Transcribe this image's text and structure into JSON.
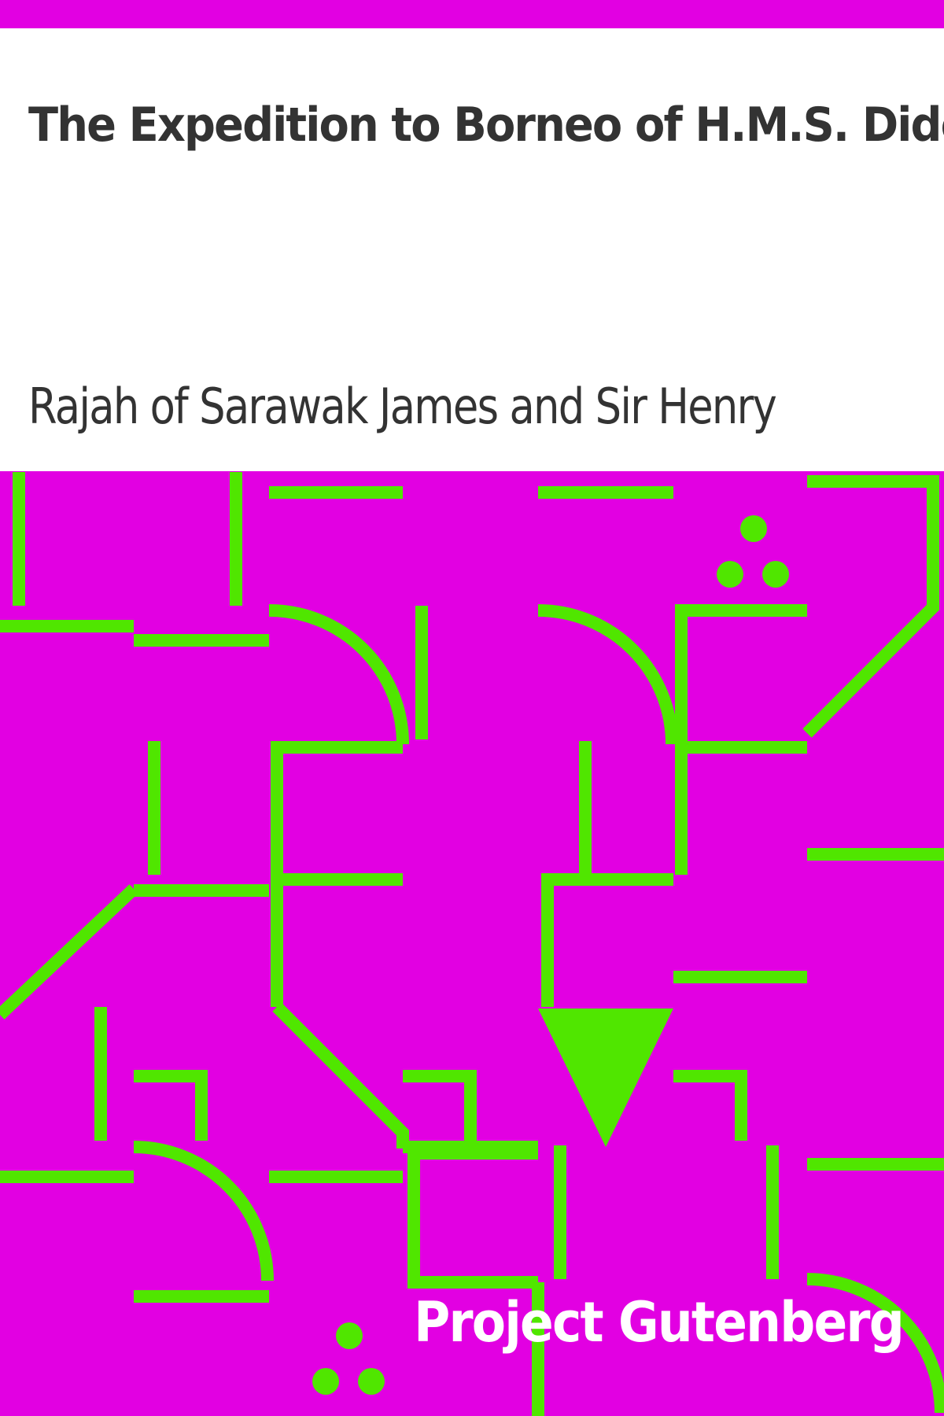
{
  "book": {
    "title": "The Expedition to Borneo of H.M.S. Dido",
    "author": "Rajah of Sarawak James and Sir Henry",
    "publisher": "Project Gutenberg"
  },
  "colors": {
    "background": "#e200e2",
    "pattern": "#50e600",
    "panel": "#ffffff",
    "text": "#333333",
    "publisher_text": "#ffffff"
  }
}
